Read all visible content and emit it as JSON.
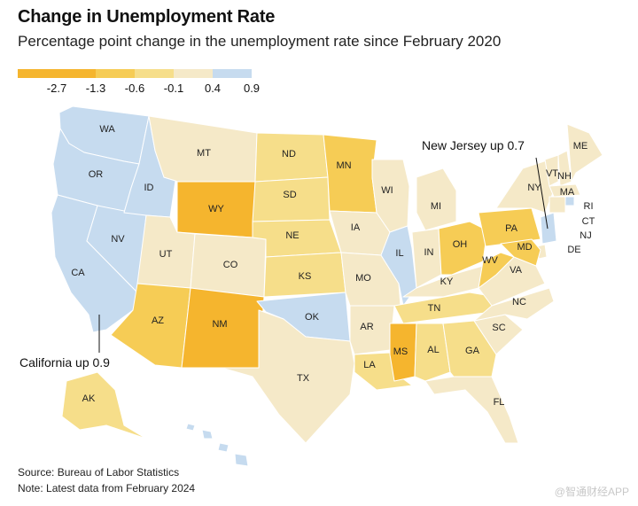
{
  "title": "Change in Unemployment Rate",
  "subtitle": "Percentage point change in the unemployment rate since February 2020",
  "legend": {
    "colors": [
      "#f5b52e",
      "#f6cc55",
      "#f6de8a",
      "#f5e9c8",
      "#c6dbef"
    ],
    "labels": [
      "-2.7",
      "-1.3",
      "-0.6",
      "-0.1",
      "0.4",
      "0.9"
    ]
  },
  "states": [
    {
      "abbr": "WA",
      "bin": 4
    },
    {
      "abbr": "OR",
      "bin": 4
    },
    {
      "abbr": "CA",
      "bin": 4
    },
    {
      "abbr": "NV",
      "bin": 4
    },
    {
      "abbr": "ID",
      "bin": 4
    },
    {
      "abbr": "MT",
      "bin": 3
    },
    {
      "abbr": "WY",
      "bin": 0
    },
    {
      "abbr": "UT",
      "bin": 3
    },
    {
      "abbr": "CO",
      "bin": 3
    },
    {
      "abbr": "AZ",
      "bin": 1
    },
    {
      "abbr": "NM",
      "bin": 0
    },
    {
      "abbr": "ND",
      "bin": 2
    },
    {
      "abbr": "SD",
      "bin": 2
    },
    {
      "abbr": "NE",
      "bin": 2
    },
    {
      "abbr": "KS",
      "bin": 2
    },
    {
      "abbr": "OK",
      "bin": 4
    },
    {
      "abbr": "TX",
      "bin": 3
    },
    {
      "abbr": "MN",
      "bin": 1
    },
    {
      "abbr": "IA",
      "bin": 3
    },
    {
      "abbr": "MO",
      "bin": 3
    },
    {
      "abbr": "AR",
      "bin": 3
    },
    {
      "abbr": "LA",
      "bin": 2
    },
    {
      "abbr": "WI",
      "bin": 3
    },
    {
      "abbr": "IL",
      "bin": 4
    },
    {
      "abbr": "MI",
      "bin": 3
    },
    {
      "abbr": "IN",
      "bin": 3
    },
    {
      "abbr": "OH",
      "bin": 1
    },
    {
      "abbr": "KY",
      "bin": 3
    },
    {
      "abbr": "TN",
      "bin": 2
    },
    {
      "abbr": "MS",
      "bin": 0
    },
    {
      "abbr": "AL",
      "bin": 2
    },
    {
      "abbr": "GA",
      "bin": 2
    },
    {
      "abbr": "FL",
      "bin": 3
    },
    {
      "abbr": "SC",
      "bin": 3
    },
    {
      "abbr": "NC",
      "bin": 3
    },
    {
      "abbr": "VA",
      "bin": 3
    },
    {
      "abbr": "WV",
      "bin": 1
    },
    {
      "abbr": "PA",
      "bin": 1
    },
    {
      "abbr": "NY",
      "bin": 3
    },
    {
      "abbr": "VT",
      "bin": 3
    },
    {
      "abbr": "NH",
      "bin": 3
    },
    {
      "abbr": "ME",
      "bin": 3
    },
    {
      "abbr": "MA",
      "bin": 3
    },
    {
      "abbr": "RI",
      "bin": 4
    },
    {
      "abbr": "CT",
      "bin": 3
    },
    {
      "abbr": "NJ",
      "bin": 4
    },
    {
      "abbr": "DE",
      "bin": 3
    },
    {
      "abbr": "MD",
      "bin": 1
    },
    {
      "abbr": "AK",
      "bin": 2
    },
    {
      "abbr": "HI",
      "bin": 4
    }
  ],
  "annotations": {
    "new_jersey": "New Jersey up 0.7",
    "california": "California up 0.9"
  },
  "source": "Source: Bureau of Labor Statistics",
  "note": "Note: Latest data from February 2024",
  "watermark": "@智通财经APP"
}
